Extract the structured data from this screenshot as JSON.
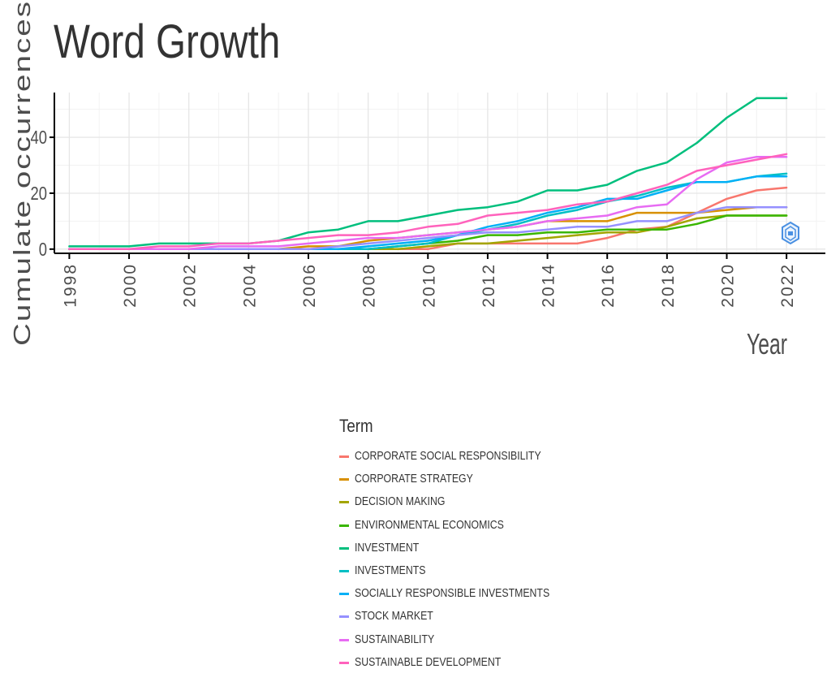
{
  "chart_data": {
    "type": "line",
    "title": "Word Growth",
    "xlabel": "Year",
    "ylabel": "Cumulate occurrences",
    "xlim": [
      1997.5,
      2023.3
    ],
    "ylim": [
      -1.5,
      56
    ],
    "x_ticks": [
      "1998",
      "2000",
      "2002",
      "2004",
      "2006",
      "2008",
      "2010",
      "2012",
      "2014",
      "2016",
      "2018",
      "2020",
      "2022"
    ],
    "y_ticks": [
      "0",
      "20",
      "40"
    ],
    "grid": true,
    "legend_title": "Term",
    "legend_position": "bottom",
    "x": [
      1998,
      1999,
      2000,
      2001,
      2002,
      2003,
      2004,
      2005,
      2006,
      2007,
      2008,
      2009,
      2010,
      2011,
      2012,
      2013,
      2014,
      2015,
      2016,
      2017,
      2018,
      2019,
      2020,
      2021,
      2022
    ],
    "series": [
      {
        "name": "CORPORATE SOCIAL RESPONSIBILITY",
        "color": "#F8766D",
        "values": [
          0,
          0,
          0,
          0,
          0,
          0,
          0,
          0,
          0,
          0,
          0,
          0,
          0,
          2,
          2,
          2,
          2,
          2,
          4,
          7,
          8,
          13,
          18,
          21,
          22
        ]
      },
      {
        "name": "CORPORATE STRATEGY",
        "color": "#D89000",
        "values": [
          0,
          0,
          0,
          0,
          0,
          0,
          0,
          0,
          1,
          1,
          3,
          4,
          5,
          6,
          7,
          8,
          10,
          10,
          10,
          13,
          13,
          13,
          14,
          15,
          15
        ]
      },
      {
        "name": "DECISION MAKING",
        "color": "#A3A500",
        "values": [
          0,
          0,
          0,
          0,
          0,
          0,
          0,
          0,
          0,
          0,
          0,
          0,
          1,
          2,
          2,
          3,
          4,
          5,
          6,
          6,
          8,
          11,
          12,
          12,
          12
        ]
      },
      {
        "name": "ENVIRONMENTAL ECONOMICS",
        "color": "#39B600",
        "values": [
          0,
          0,
          0,
          0,
          0,
          0,
          0,
          0,
          0,
          0,
          0,
          1,
          2,
          3,
          5,
          5,
          6,
          6,
          7,
          7,
          7,
          9,
          12,
          12,
          12
        ]
      },
      {
        "name": "INVESTMENT",
        "color": "#00BF7D",
        "values": [
          1,
          1,
          1,
          2,
          2,
          2,
          2,
          3,
          6,
          7,
          10,
          10,
          12,
          14,
          15,
          17,
          21,
          21,
          23,
          28,
          31,
          38,
          47,
          54,
          54
        ]
      },
      {
        "name": "INVESTMENTS",
        "color": "#00BFC4",
        "values": [
          0,
          0,
          0,
          0,
          0,
          0,
          0,
          0,
          0,
          0,
          0,
          1,
          2,
          5,
          7,
          9,
          12,
          14,
          17,
          19,
          22,
          24,
          24,
          26,
          27
        ]
      },
      {
        "name": "SOCIALLY RESPONSIBLE INVESTMENTS",
        "color": "#00B0F6",
        "values": [
          0,
          0,
          0,
          0,
          0,
          0,
          0,
          0,
          0,
          0,
          1,
          2,
          3,
          5,
          8,
          10,
          13,
          15,
          18,
          18,
          21,
          24,
          24,
          26,
          26
        ]
      },
      {
        "name": "STOCK MARKET",
        "color": "#9590FF",
        "values": [
          0,
          0,
          0,
          0,
          0,
          0,
          0,
          0,
          0,
          1,
          2,
          3,
          4,
          5,
          6,
          6,
          7,
          8,
          8,
          10,
          10,
          13,
          15,
          15,
          15
        ]
      },
      {
        "name": "SUSTAINABILITY",
        "color": "#E76BF3",
        "values": [
          0,
          0,
          0,
          0,
          0,
          1,
          1,
          1,
          2,
          3,
          4,
          4,
          5,
          6,
          7,
          8,
          10,
          11,
          12,
          15,
          16,
          25,
          31,
          33,
          33
        ]
      },
      {
        "name": "SUSTAINABLE DEVELOPMENT",
        "color": "#FF62BC",
        "values": [
          0,
          0,
          0,
          1,
          1,
          2,
          2,
          3,
          4,
          5,
          5,
          6,
          8,
          9,
          12,
          13,
          14,
          16,
          17,
          20,
          23,
          28,
          30,
          32,
          34
        ]
      }
    ]
  },
  "watermark": {
    "name": "shield-logo-icon",
    "color": "#4A90E2"
  }
}
